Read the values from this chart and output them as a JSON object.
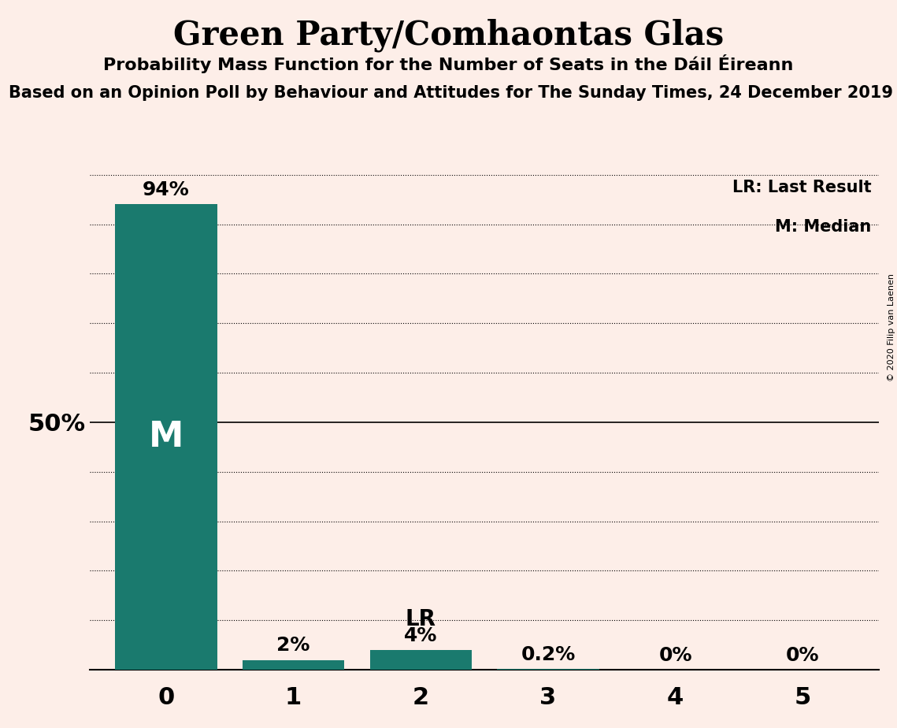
{
  "title": "Green Party/Comhaontas Glas",
  "subtitle": "Probability Mass Function for the Number of Seats in the Dáil Éireann",
  "sub2": "Based on an Opinion Poll by Behaviour and Attitudes for The Sunday Times, 24 December 2019",
  "copyright": "© 2020 Filip van Laenen",
  "categories": [
    0,
    1,
    2,
    3,
    4,
    5
  ],
  "values": [
    0.94,
    0.02,
    0.04,
    0.002,
    0.0,
    0.0
  ],
  "bar_color": "#1a7a6e",
  "background_color": "#fdeee8",
  "legend_lr": "LR: Last Result",
  "legend_m": "M: Median",
  "bar_labels": [
    "94%",
    "2%",
    "4%",
    "0.2%",
    "0%",
    "0%"
  ],
  "ylim_max": 1.0,
  "grid_step": 0.1
}
